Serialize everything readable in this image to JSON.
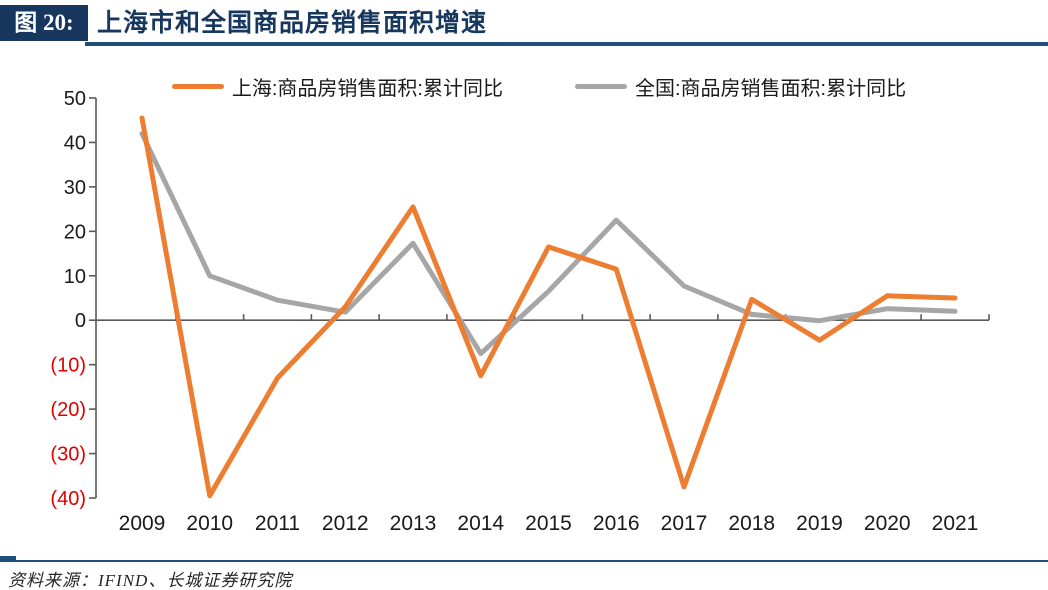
{
  "header": {
    "figure_label": "图 20:",
    "title": "上海市和全国商品房销售面积增速"
  },
  "legend": {
    "items": [
      {
        "key": "shanghai",
        "label": "上海:商品房销售面积:累计同比",
        "color": "#ED7D31"
      },
      {
        "key": "national",
        "label": "全国:商品房销售面积:累计同比",
        "color": "#A6A6A6"
      }
    ]
  },
  "footer": {
    "source": "资料来源：IFIND、长城证券研究院"
  },
  "colors": {
    "accent_navy": "#17375e",
    "rule_blue": "#1f4e79",
    "axis_line": "#595959",
    "tick_label": "#1a1a1a",
    "negative_label": "#e00000",
    "shanghai_line": "#ED7D31",
    "national_line": "#A6A6A6"
  },
  "chart_data": {
    "type": "line",
    "title": "上海市和全国商品房销售面积增速",
    "xlabel": "",
    "ylabel": "",
    "categories": [
      "2009",
      "2010",
      "2011",
      "2012",
      "2013",
      "2014",
      "2015",
      "2016",
      "2017",
      "2018",
      "2019",
      "2020",
      "2021"
    ],
    "series": [
      {
        "name": "上海:商品房销售面积:累计同比",
        "color": "#ED7D31",
        "values": [
          45.5,
          -39.5,
          -13,
          3,
          25.5,
          -12.5,
          16.5,
          11.5,
          -37.5,
          4.7,
          -4.5,
          5.5,
          5
        ]
      },
      {
        "name": "全国:商品房销售面积:累计同比",
        "color": "#A6A6A6",
        "values": [
          42,
          10,
          4.5,
          1.8,
          17.3,
          -7.5,
          6.5,
          22.5,
          7.7,
          1.3,
          -0.1,
          2.6,
          2
        ]
      }
    ],
    "ylim": [
      -40,
      50
    ],
    "ytick_interval": 10,
    "negative_label_format": "parentheses-red",
    "grid": "zero-line-only",
    "legend_position": "top-center"
  }
}
